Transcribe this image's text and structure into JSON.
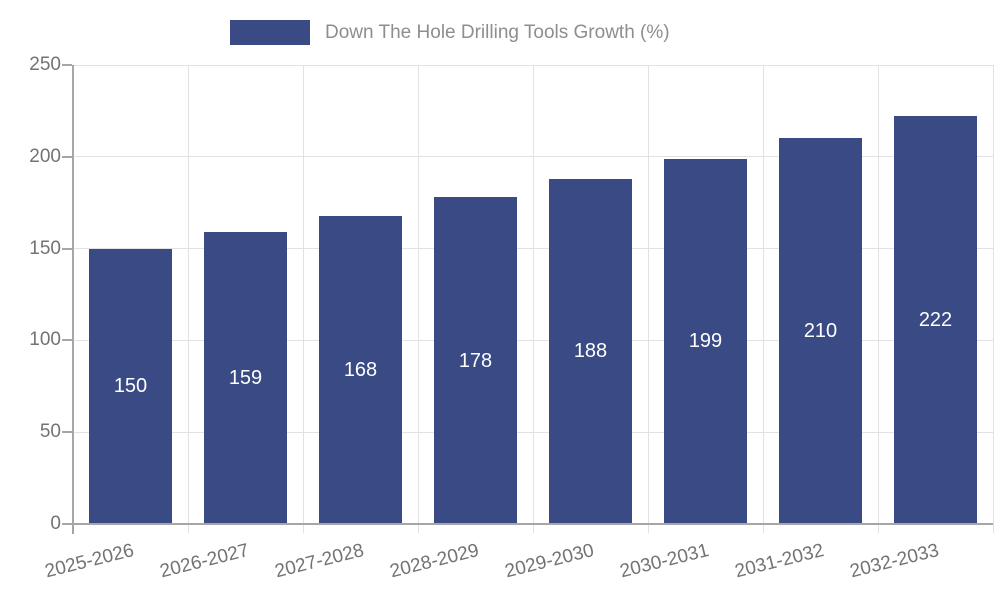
{
  "legend": {
    "label": "Down The Hole Drilling Tools Growth (%)"
  },
  "chart_data": {
    "type": "bar",
    "title": "Down The Hole Drilling Tools Growth (%)",
    "categories": [
      "2025-2026",
      "2026-2027",
      "2027-2028",
      "2028-2029",
      "2029-2030",
      "2030-2031",
      "2031-2032",
      "2032-2033"
    ],
    "values": [
      150,
      159,
      168,
      178,
      188,
      199,
      210,
      222
    ],
    "bar_value_labels": [
      "150",
      "159",
      "168",
      "178",
      "188",
      "199",
      "210",
      "222"
    ],
    "xlabel": "",
    "ylabel": "",
    "ylim": [
      0,
      250
    ],
    "yticks": [
      0,
      50,
      100,
      150,
      200,
      250
    ],
    "grid": true,
    "legend_position": "top"
  },
  "colors": {
    "bar": "#394A84",
    "bar_label": "#ffffff",
    "grid": "#e2e2e2",
    "axis": "#a6a6a6",
    "tick_label": "#737373",
    "legend_text": "#8e8e8e"
  }
}
